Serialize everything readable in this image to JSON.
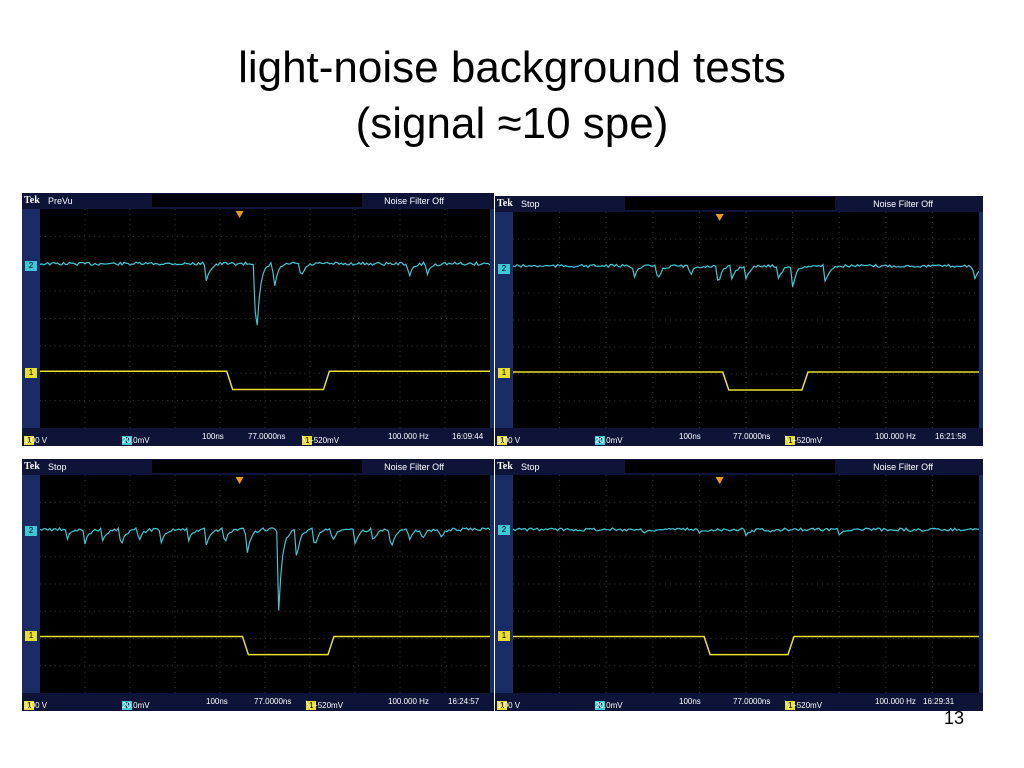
{
  "slide": {
    "title_line1": "light-noise background tests",
    "title_line2": "(signal ≈10 spe)",
    "page_number": "13"
  },
  "scopes": [
    {
      "brand": "Tek",
      "mode": "PreVu",
      "noise_filter": "Noise Filter Off",
      "ch1_scale": "1.00 V",
      "ch2_scale": "20.0mV",
      "timebase": "100ns",
      "trig_pos": "77.0000ns",
      "trig_level": "╲ −520mV",
      "frequency": "100.000 Hz",
      "timestamp": "16:09:44",
      "ch1_tag": "1",
      "ch2_tag": "2"
    },
    {
      "brand": "Tek",
      "mode": "Stop",
      "noise_filter": "Noise Filter Off",
      "ch1_scale": "1.00 V",
      "ch2_scale": "20.0mV",
      "timebase": "100ns",
      "trig_pos": "77.0000ns",
      "trig_level": "╲ −520mV",
      "frequency": "100.000 Hz",
      "timestamp": "16:21:58",
      "ch1_tag": "1",
      "ch2_tag": "2"
    },
    {
      "brand": "Tek",
      "mode": "Stop",
      "noise_filter": "Noise Filter Off",
      "ch1_scale": "1.00 V",
      "ch2_scale": "20.0mV",
      "timebase": "100ns",
      "trig_pos": "77.0000ns",
      "trig_level": "╲ −520mV",
      "frequency": "100.000 Hz",
      "timestamp": "16:24:57",
      "ch1_tag": "1",
      "ch2_tag": "2"
    },
    {
      "brand": "Tek",
      "mode": "Stop",
      "noise_filter": "Noise Filter Off",
      "ch1_scale": "1.00 V",
      "ch2_scale": "20.0mV",
      "timebase": "100ns",
      "trig_pos": "77.0000ns",
      "trig_level": "╲ −520mV",
      "frequency": "100.000 Hz",
      "timestamp": "16:29:31",
      "ch1_tag": "1",
      "ch2_tag": "2"
    }
  ],
  "colors": {
    "ch1": "#e8df30",
    "ch2": "#3ec7d6",
    "screen": "#000000",
    "frame": "#1a2c66"
  }
}
